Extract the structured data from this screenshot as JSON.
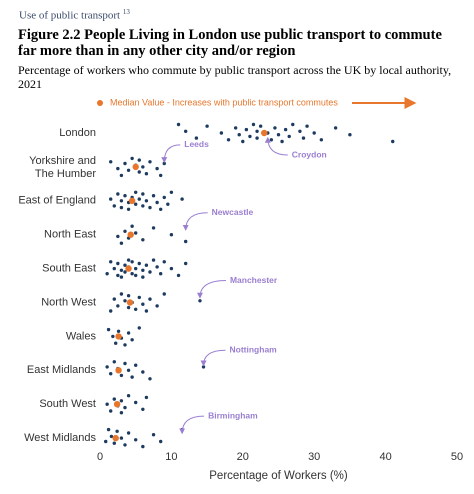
{
  "header": {
    "text": "Use of public transport",
    "note": "13"
  },
  "chart_data": {
    "type": "strip",
    "title": "Figure 2.2 People Living in London use public transport to commute far more than in any other city and/or region",
    "subtitle": "Percentage of workers who commute by public transport across the UK by local authority, 2021",
    "legend": "Median Value - Increases with public transport commutes",
    "xlabel": "Percentage of Workers (%)",
    "xlim": [
      0,
      50
    ],
    "xticks": [
      0,
      10,
      20,
      30,
      40,
      50
    ],
    "dot_color": "#1d3a5f",
    "median_color": "#e8762c",
    "annotation_color": "#9a7fd0",
    "categories": [
      "London",
      "Yorkshire and The Humber",
      "East of England",
      "North East",
      "South East",
      "North West",
      "Wales",
      "East Midlands",
      "South West",
      "West Midlands"
    ],
    "medians": [
      23,
      5,
      4.5,
      4.3,
      4,
      4.2,
      2.6,
      2.6,
      2.4,
      2.2
    ],
    "values": [
      [
        11,
        12,
        13.5,
        15,
        17,
        18,
        19,
        19.5,
        20,
        20.5,
        21,
        21.5,
        22,
        22,
        22.5,
        23.5,
        24,
        24.5,
        25,
        25.5,
        26,
        26.5,
        27,
        28,
        28.5,
        29,
        30,
        31,
        33,
        35,
        41
      ],
      [
        1.5,
        2.5,
        3,
        3.5,
        4,
        4.5,
        5,
        5.5,
        5.5,
        6,
        6.5,
        7,
        8,
        8.5,
        9
      ],
      [
        1.5,
        2,
        2.5,
        3,
        3,
        3.5,
        4,
        4,
        4.5,
        5,
        5,
        5.5,
        6,
        6,
        6.5,
        7,
        7.5,
        8,
        8.5,
        9,
        9.5,
        10,
        11.5
      ],
      [
        2.5,
        3,
        3.5,
        4,
        4.5,
        5,
        6,
        7.5,
        10,
        12
      ],
      [
        1,
        1.5,
        2,
        2.5,
        2.5,
        3,
        3,
        3.5,
        3.5,
        4,
        4,
        4.5,
        4.5,
        5,
        5,
        5.5,
        6,
        6,
        6.5,
        7,
        7.5,
        8,
        8.5,
        9,
        10,
        11,
        12
      ],
      [
        1.5,
        2,
        2.5,
        3,
        3.5,
        4,
        4,
        4.5,
        5,
        5.5,
        6,
        6.5,
        7,
        8,
        9,
        14
      ],
      [
        1.2,
        1.8,
        2.2,
        2.6,
        3,
        3.5,
        4,
        4.5,
        5.5
      ],
      [
        1,
        1.5,
        2,
        2.5,
        3,
        3.5,
        4,
        4.5,
        5,
        6,
        7,
        14.5
      ],
      [
        1,
        1.5,
        2,
        2.5,
        3,
        3,
        3.5,
        4,
        5,
        6,
        6.5
      ],
      [
        0.8,
        1.2,
        1.6,
        2,
        2.4,
        3,
        3.5,
        4,
        5,
        6,
        7.5,
        8.5,
        11.5
      ]
    ],
    "annotations": [
      {
        "text": "Leeds",
        "category": 1,
        "value": 9
      },
      {
        "text": "Croydon",
        "category": 0,
        "value": 23.5
      },
      {
        "text": "Newcastle",
        "category": 3,
        "value": 12
      },
      {
        "text": "Manchester",
        "category": 5,
        "value": 14
      },
      {
        "text": "Nottingham",
        "category": 7,
        "value": 14.5
      },
      {
        "text": "Birmingham",
        "category": 9,
        "value": 11.5
      }
    ]
  }
}
